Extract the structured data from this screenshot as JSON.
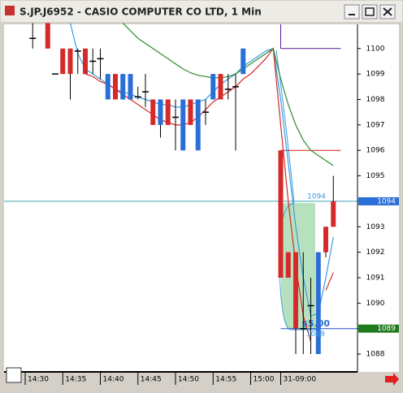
{
  "chart_data": {
    "type": "candlestick",
    "title": "S.JP.J6952 - CASIO COMPUTER CO LTD, 1 Min",
    "categories": [
      "14:30",
      null,
      null,
      null,
      null,
      "14:35",
      null,
      null,
      null,
      null,
      "14:40",
      null,
      null,
      null,
      null,
      "14:45",
      null,
      null,
      null,
      null,
      "14:50",
      null,
      null,
      null,
      null,
      "14:55",
      null,
      null,
      null,
      null,
      "15:00",
      null,
      null,
      null,
      "31-09:00",
      null,
      null,
      null,
      null,
      null,
      null,
      null
    ],
    "open": [
      null,
      1100.4,
      null,
      1101,
      1099,
      1100,
      1100,
      1099.9,
      1100,
      1099.5,
      1099.6,
      1098,
      1099,
      1098,
      1098,
      1098.1,
      1098.3,
      1098,
      1097,
      1098,
      1097.3,
      1096,
      1098,
      1096,
      1097.5,
      1098,
      1099,
      1098.4,
      1098.5,
      1099,
      null,
      null,
      null,
      null,
      1096,
      1092,
      1092,
      1089,
      1089.9,
      1088,
      1093,
      1094
    ],
    "high": [
      null,
      1101,
      null,
      1101,
      1099,
      1100,
      1100,
      1100,
      1100,
      1100,
      1100,
      1099,
      1099,
      1099,
      1099,
      1098.5,
      1099,
      1098,
      1098,
      1098,
      1098,
      1098,
      1098,
      1098,
      1098,
      1099,
      1099,
      1099,
      1099,
      1100,
      null,
      null,
      null,
      null,
      1096,
      1092,
      1092,
      1092,
      1091,
      1092,
      1093,
      1095
    ],
    "low": [
      null,
      1100,
      null,
      1100,
      1099,
      1099,
      1098,
      1099,
      1099,
      1099,
      1098.8,
      1098,
      1098,
      1098,
      1098,
      1098,
      1097.7,
      1097,
      1096.5,
      1097,
      1096,
      1096,
      1097,
      1096,
      1097,
      1098,
      1098,
      1098,
      1096,
      1099,
      null,
      null,
      null,
      null,
      1091,
      1091,
      1088,
      1088,
      1088,
      1088,
      1091.8,
      1093
    ],
    "close": [
      null,
      1100.4,
      null,
      1100,
      1099,
      1099,
      1099,
      1099.9,
      1099,
      1099.5,
      1099.6,
      1099,
      1098,
      1099,
      1099,
      1098.1,
      1098.3,
      1097,
      1098,
      1097,
      1097.3,
      1098,
      1097,
      1098,
      1097.5,
      1099,
      1098,
      1098.4,
      1098.5,
      1100,
      null,
      null,
      null,
      null,
      1091,
      1091,
      1089,
      1089,
      1089.9,
      1092,
      1092,
      1093
    ],
    "up_color": "#2a6fd6",
    "down_color": "#d42a2a",
    "lines": [
      {
        "color": "#3a9be0",
        "values": [
          null,
          null,
          null,
          null,
          null,
          null,
          1101,
          1099.8,
          1099.2,
          1099,
          1098.8,
          1098.6,
          1098.4,
          1098.3,
          1098.2,
          1098.1,
          1098,
          1097.9,
          1097.8,
          1097.8,
          1097.7,
          1097.7,
          1097.8,
          1097.9,
          1098,
          1098.3,
          1098.6,
          1098.8,
          1099,
          1099.3,
          1099.5,
          1099.7,
          1099.9,
          1100,
          1098,
          1095.5,
          1093,
          1091,
          1089.5,
          1089.6,
          1091,
          1092.6
        ]
      },
      {
        "color": "#d42a2a",
        "values": [
          null,
          null,
          null,
          null,
          null,
          null,
          null,
          null,
          1099,
          1098.9,
          1098.7,
          1098.6,
          1098.4,
          1098.2,
          1098,
          1097.8,
          1097.6,
          1097.4,
          1097.2,
          1097.1,
          1097,
          1097,
          1097.1,
          1097.3,
          1097.6,
          1097.9,
          1098.1,
          1098.3,
          1098.5,
          1098.8,
          1099,
          1099.3,
          1099.6,
          1100,
          1097,
          1094,
          1091.5,
          1089.5,
          1088.5,
          null,
          1090.5,
          1091.2
        ]
      },
      {
        "color": "#2e8a2e",
        "values": [
          null,
          null,
          null,
          null,
          null,
          null,
          null,
          null,
          null,
          null,
          null,
          null,
          null,
          1101,
          1100.7,
          1100.4,
          1100.2,
          1100,
          1099.8,
          1099.6,
          1099.4,
          1099.2,
          1099.05,
          1098.95,
          1098.9,
          1098.85,
          1098.85,
          1098.9,
          1099,
          1099.2,
          1099.4,
          1099.6,
          1099.8,
          1100,
          1098.8,
          1097.8,
          1097,
          1096.4,
          1096,
          1095.8,
          1095.6,
          1095.4
        ]
      }
    ],
    "hlines": [
      {
        "value": 1094,
        "color": "#3aa6b4"
      },
      {
        "value": 1089,
        "color": "#2a50c8",
        "start": 34
      },
      {
        "value": 1096,
        "color": "#cc2020",
        "start": 34,
        "end": 42
      },
      {
        "value": 1100,
        "color": "#5a1a9a",
        "start": 34,
        "end": 42
      }
    ],
    "price_flags": [
      {
        "value": 1094,
        "color": "#2a6fd6"
      },
      {
        "value": 1089,
        "color": "#1f7a1f"
      }
    ],
    "annotation": "$5.00",
    "ylim": [
      1087.3,
      1100.95
    ],
    "yticks": [
      1088,
      1089,
      1090,
      1091,
      1092,
      1093,
      1094,
      1095,
      1096,
      1097,
      1098,
      1099,
      1100
    ]
  }
}
